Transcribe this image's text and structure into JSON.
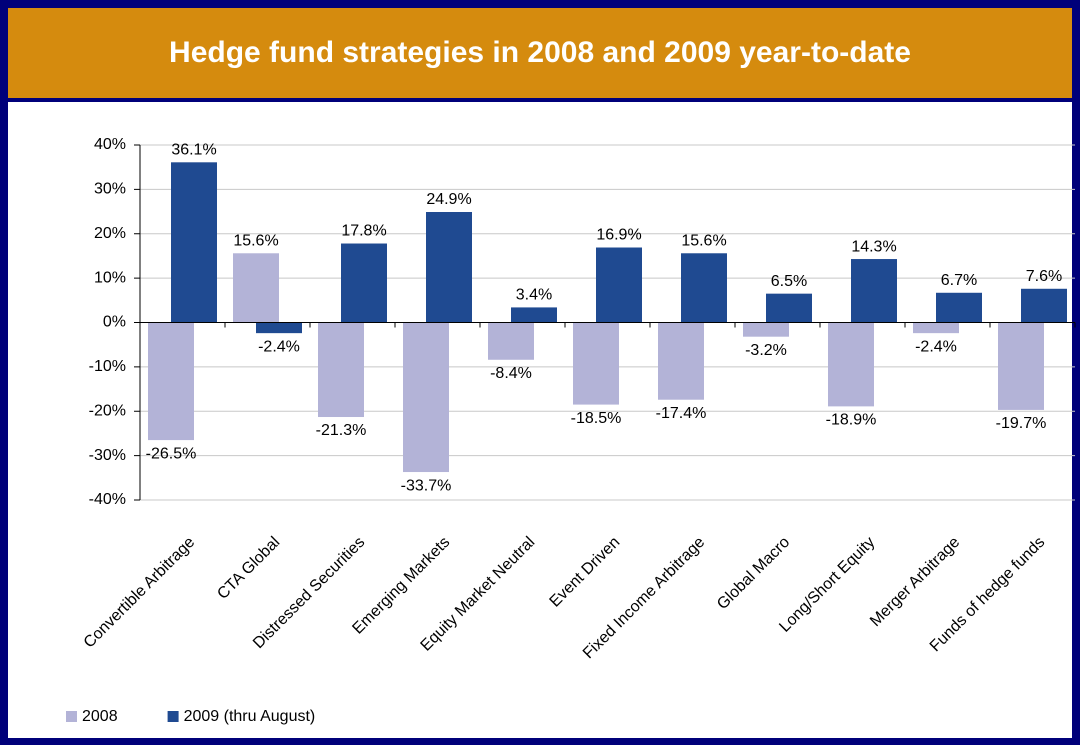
{
  "chart_data": {
    "type": "bar",
    "title": "Hedge fund strategies in 2008 and 2009 year-to-date",
    "categories": [
      "Convertible Arbitrage",
      "CTA Global",
      "Distressed Securities",
      "Emerging Markets",
      "Equity Market Neutral",
      "Event Driven",
      "Fixed Income Arbitrage",
      "Global Macro",
      "Long/Short Equity",
      "Merger Arbitrage",
      "Funds of hedge funds"
    ],
    "series": [
      {
        "name": "2008",
        "color": "#b3b3d7",
        "values": [
          -26.5,
          15.6,
          -21.3,
          -33.7,
          -8.4,
          -18.5,
          -17.4,
          -3.2,
          -18.9,
          -2.4,
          -19.7
        ],
        "value_labels": [
          "-26.5%",
          "15.6%",
          "-21.3%",
          "-33.7%",
          "-8.4%",
          "-18.5%",
          "-17.4%",
          "-3.2%",
          "-18.9%",
          "-2.4%",
          "-19.7%"
        ]
      },
      {
        "name": "2009 (thru August)",
        "color": "#1f4a91",
        "values": [
          36.1,
          -2.4,
          17.8,
          24.9,
          3.4,
          16.9,
          15.6,
          6.5,
          14.3,
          6.7,
          7.6
        ],
        "value_labels": [
          "36.1%",
          "-2.4%",
          "17.8%",
          "24.9%",
          "3.4%",
          "16.9%",
          "15.6%",
          "6.5%",
          "14.3%",
          "6.7%",
          "7.6%"
        ]
      }
    ],
    "ylim": [
      -40,
      40
    ],
    "yticks": [
      {
        "value": -40,
        "label": "-40%"
      },
      {
        "value": -30,
        "label": "-30%"
      },
      {
        "value": -20,
        "label": "-20%"
      },
      {
        "value": -10,
        "label": "-10%"
      },
      {
        "value": 0,
        "label": "0%"
      },
      {
        "value": 10,
        "label": "10%"
      },
      {
        "value": 20,
        "label": "20%"
      },
      {
        "value": 30,
        "label": "30%"
      },
      {
        "value": 40,
        "label": "40%"
      }
    ],
    "grid": true,
    "legend": "bottom-left"
  }
}
